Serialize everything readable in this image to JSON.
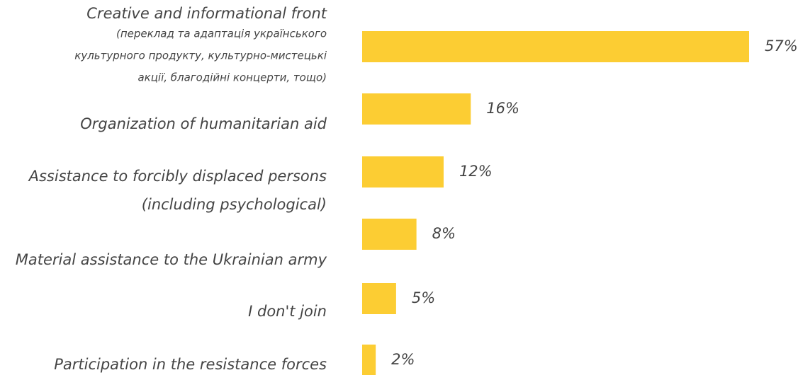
{
  "chart_data": {
    "type": "bar",
    "orientation": "horizontal",
    "bar_color": "#FCCD33",
    "text_color": "#444444",
    "value_unit": "%",
    "categories": [
      {
        "label": "Creative and informational front",
        "sublabel": [
          "(переклад та адаптація українського",
          "культурного продукту, культурно-мистецькі",
          "акції, благодійні концерти, тощо)"
        ]
      },
      {
        "label": "Organization of humanitarian aid"
      },
      {
        "label": [
          "Assistance to forcibly displaced persons",
          "(including psychological)"
        ]
      },
      {
        "label": "Material assistance to the Ukrainian army"
      },
      {
        "label": "I don't join"
      },
      {
        "label": "Participation in the resistance forces"
      }
    ],
    "values": [
      57,
      16,
      12,
      8,
      5,
      2
    ],
    "value_labels": [
      "57%",
      "16%",
      "12%",
      "8%",
      "5%",
      "2%"
    ],
    "xlim": [
      0,
      57
    ],
    "grid": false,
    "legend": "none",
    "title": ""
  }
}
